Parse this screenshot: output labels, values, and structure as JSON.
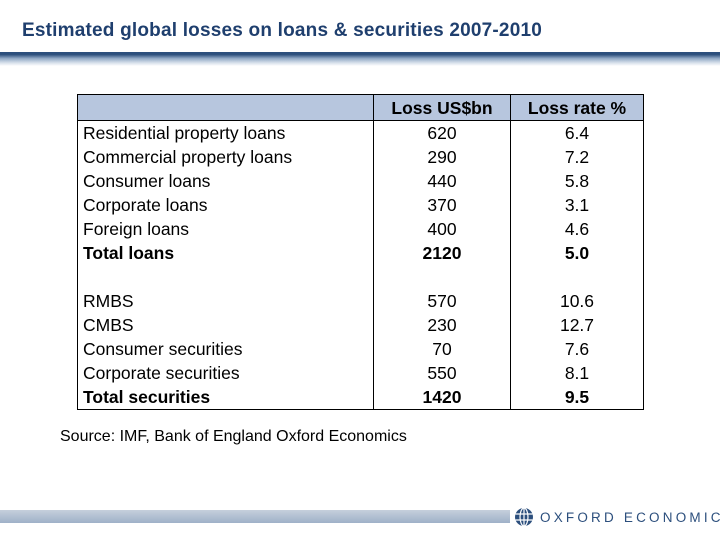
{
  "slide": {
    "title": "Estimated global losses on loans & securities 2007-2010",
    "source": "Source: IMF, Bank of England Oxford Economics"
  },
  "table": {
    "headers": [
      "",
      "Loss US$bn",
      "Loss rate %"
    ],
    "loans": [
      {
        "label": "Residential property loans",
        "loss": "620",
        "rate": "6.4"
      },
      {
        "label": "Commercial property loans",
        "loss": "290",
        "rate": "7.2"
      },
      {
        "label": "Consumer loans",
        "loss": "440",
        "rate": "5.8"
      },
      {
        "label": "Corporate loans",
        "loss": "370",
        "rate": "3.1"
      },
      {
        "label": "Foreign loans",
        "loss": "400",
        "rate": "4.6"
      }
    ],
    "loans_total": {
      "label": "Total loans",
      "loss": "2120",
      "rate": "5.0"
    },
    "securities": [
      {
        "label": "RMBS",
        "loss": "570",
        "rate": "10.6"
      },
      {
        "label": "CMBS",
        "loss": "230",
        "rate": "12.7"
      },
      {
        "label": "Consumer securities",
        "loss": "70",
        "rate": "7.6"
      },
      {
        "label": "Corporate securities",
        "loss": "550",
        "rate": "8.1"
      }
    ],
    "securities_total": {
      "label": "Total securities",
      "loss": "1420",
      "rate": "9.5"
    }
  },
  "footer": {
    "logo_text": "OXFORD ECONOMICS",
    "logo_icon": "globe-icon"
  },
  "colors": {
    "title": "#1f3f6e",
    "header_fill": "#b7c6de",
    "brand": "#2c4f7d"
  }
}
